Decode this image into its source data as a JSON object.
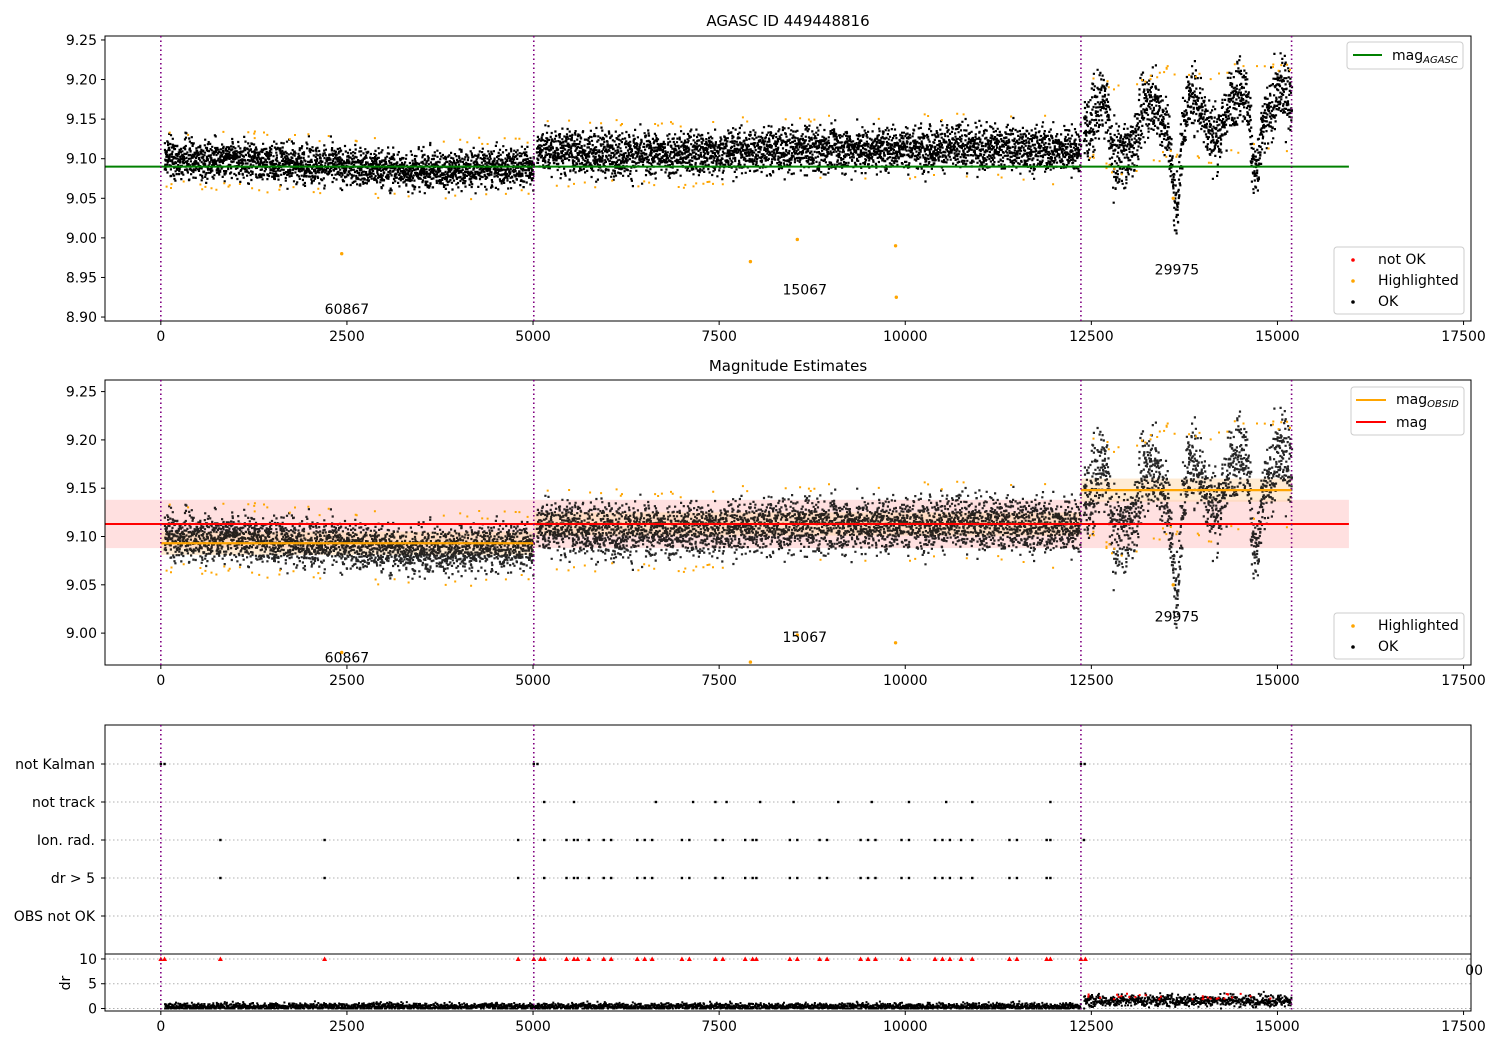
{
  "colors": {
    "ok": "#000000",
    "highlighted": "#ffa500",
    "not_ok": "#ff0000",
    "agasc_line": "#008000",
    "obsid_line": "#ffa500",
    "mag_line": "#ff0000",
    "obs_boundary": "#800080",
    "grid": "#b0b0b0"
  },
  "chart_data": [
    {
      "type": "scatter",
      "title": "AGASC ID 449448816",
      "xlim": [
        -750,
        17600
      ],
      "ylim": [
        8.895,
        9.255
      ],
      "xticks": [
        0,
        2500,
        5000,
        7500,
        10000,
        12500,
        15000,
        17500
      ],
      "xtick_labels": [
        "0",
        "2500",
        "5000",
        "7500",
        "10000",
        "12500",
        "15000",
        "17500"
      ],
      "yticks": [
        8.9,
        8.95,
        9.0,
        9.05,
        9.1,
        9.15,
        9.2,
        9.25
      ],
      "ytick_labels": [
        "8.90",
        "8.95",
        "9.00",
        "9.05",
        "9.10",
        "9.15",
        "9.20",
        "9.25"
      ],
      "obs_boundaries": [
        0,
        5010,
        12360,
        15190
      ],
      "obs_labels": [
        {
          "text": "60867",
          "x": 2500,
          "y": 8.91
        },
        {
          "text": "15067",
          "x": 8650,
          "y": 8.935
        },
        {
          "text": "29975",
          "x": 13650,
          "y": 8.96
        }
      ],
      "mag_agasc": 9.09,
      "series_legend": {
        "not_ok": "not OK",
        "highlighted": "Highlighted",
        "ok": "OK"
      },
      "line_legend": {
        "mag_agasc": "mag",
        "mag_agasc_sub": "AGASC"
      },
      "segments": [
        {
          "x": [
            50,
            5010
          ],
          "trend": [
            9.102,
            9.095,
            9.085,
            9.09
          ],
          "spread": 0.012
        },
        {
          "x": [
            5050,
            12360
          ],
          "trend": [
            9.11,
            9.105,
            9.11,
            9.112,
            9.115,
            9.11
          ],
          "spread": 0.014
        },
        {
          "x": [
            12400,
            15190
          ],
          "trend": [
            9.16,
            9.13,
            9.16,
            9.15,
            9.17,
            9.16
          ],
          "spread": 0.02,
          "dips": [
            [
              12800,
              9.09
            ],
            [
              13640,
              9.06
            ],
            [
              14700,
              9.1
            ]
          ]
        }
      ],
      "outliers": [
        [
          2430,
          8.98
        ],
        [
          7920,
          8.97
        ],
        [
          8550,
          8.998
        ],
        [
          9870,
          8.99
        ],
        [
          9880,
          8.925
        ],
        [
          13600,
          9.05
        ]
      ]
    },
    {
      "type": "scatter",
      "title": "Magnitude Estimates",
      "xlim": [
        -750,
        17600
      ],
      "ylim": [
        8.967,
        9.262
      ],
      "xticks": [
        0,
        2500,
        5000,
        7500,
        10000,
        12500,
        15000,
        17500
      ],
      "xtick_labels": [
        "0",
        "2500",
        "5000",
        "7500",
        "10000",
        "12500",
        "15000",
        "17500"
      ],
      "yticks": [
        9.0,
        9.05,
        9.1,
        9.15,
        9.2,
        9.25
      ],
      "ytick_labels": [
        "9.00",
        "9.05",
        "9.10",
        "9.15",
        "9.20",
        "9.25"
      ],
      "obs_boundaries": [
        0,
        5010,
        12360,
        15190
      ],
      "obs_labels": [
        {
          "text": "60867",
          "x": 2500,
          "y": 8.975
        },
        {
          "text": "15067",
          "x": 8650,
          "y": 8.996
        },
        {
          "text": "29975",
          "x": 13650,
          "y": 9.017
        }
      ],
      "mag": 9.113,
      "mag_band": [
        9.088,
        9.138
      ],
      "mag_obsid": [
        {
          "x": [
            0,
            5010
          ],
          "y": 9.093
        },
        {
          "x": [
            5010,
            12360
          ],
          "y": 9.113
        },
        {
          "x": [
            12360,
            15190
          ],
          "y": 9.148
        }
      ],
      "series_legend": {
        "highlighted": "Highlighted",
        "ok": "OK"
      },
      "line_legend": {
        "mag_obsid": "mag",
        "mag_obsid_sub": "OBSID",
        "mag": "mag"
      }
    },
    {
      "type": "table",
      "xlim": [
        -750,
        17600
      ],
      "rows": [
        "not Kalman",
        "not track",
        "Ion. rad.",
        "dr > 5",
        "OBS not OK"
      ],
      "flag_points": {
        "not Kalman": [
          0,
          50,
          5010,
          5060,
          12360,
          12410
        ],
        "not track": [
          5150,
          5550,
          6650,
          7150,
          7450,
          7600,
          8050,
          8500,
          9100,
          9550,
          10050,
          10550,
          10900,
          11950
        ],
        "Ion. rad.": [
          800,
          2200,
          4800,
          5150,
          5450,
          5550,
          5600,
          5750,
          5950,
          6050,
          6400,
          6500,
          6600,
          7000,
          7100,
          7450,
          7550,
          7850,
          7950,
          8000,
          8450,
          8550,
          8850,
          8950,
          9400,
          9500,
          9600,
          9950,
          10050,
          10400,
          10500,
          10600,
          10750,
          10900,
          11400,
          11500,
          11900,
          11950,
          12400
        ],
        "dr > 5": [
          800,
          2200,
          4800,
          5150,
          5450,
          5550,
          5600,
          5750,
          5950,
          6050,
          6400,
          6500,
          6600,
          7000,
          7100,
          7450,
          7550,
          7850,
          7950,
          8000,
          8450,
          8550,
          8850,
          8950,
          9400,
          9500,
          9600,
          9950,
          10050,
          10400,
          10500,
          10600,
          10750,
          10900,
          11400,
          11500,
          11900,
          11950
        ],
        "OBS not OK": []
      },
      "obs_boundaries": [
        0,
        5010,
        12360,
        15190
      ],
      "stray_text": "00"
    },
    {
      "type": "scatter",
      "xlim": [
        -750,
        17600
      ],
      "ylim": [
        -0.5,
        11
      ],
      "ylabel": "dr",
      "yticks": [
        0,
        5,
        10
      ],
      "ytick_labels": [
        "0",
        "5",
        "10"
      ],
      "xticks": [
        0,
        2500,
        5000,
        7500,
        10000,
        12500,
        15000,
        17500
      ],
      "xtick_labels": [
        "0",
        "2500",
        "5000",
        "7500",
        "10000",
        "12500",
        "15000",
        "17500"
      ],
      "obs_boundaries": [
        0,
        5010,
        12360,
        15190
      ],
      "clipped_value": 10,
      "segments": [
        {
          "x": [
            50,
            12360
          ],
          "level": 0.4,
          "spread": 0.35
        },
        {
          "x": [
            12400,
            15190
          ],
          "level": 1.6,
          "spread": 0.6
        }
      ],
      "clipped_x": [
        0,
        50,
        800,
        2200,
        4800,
        5010,
        5100,
        5150,
        5450,
        5550,
        5600,
        5750,
        5950,
        6050,
        6400,
        6500,
        6600,
        7000,
        7100,
        7450,
        7550,
        7850,
        7950,
        8000,
        8450,
        8550,
        8850,
        8950,
        9400,
        9500,
        9600,
        9950,
        10050,
        10400,
        10500,
        10600,
        10750,
        10900,
        11400,
        11500,
        11900,
        11950,
        12360,
        12420
      ]
    }
  ]
}
